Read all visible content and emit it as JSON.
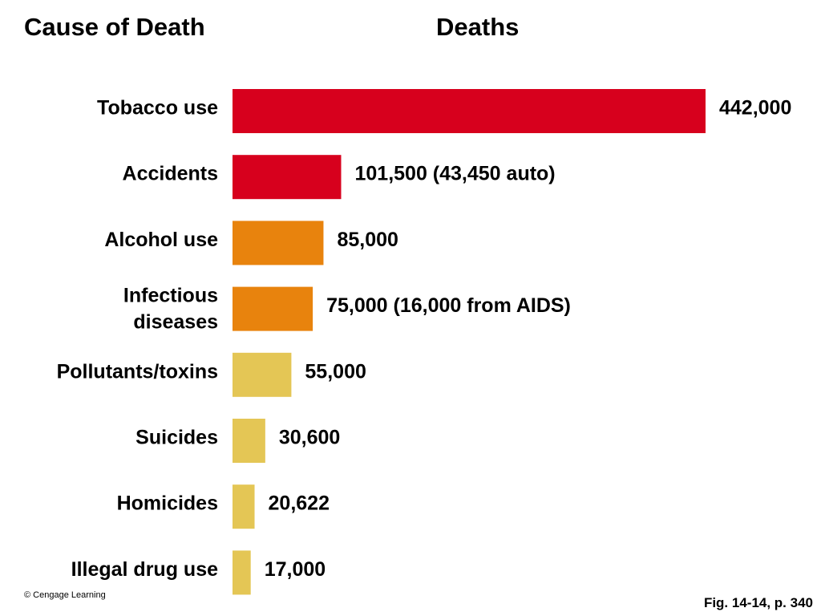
{
  "headers": {
    "cause": "Cause of Death",
    "deaths": "Deaths"
  },
  "chart_data": {
    "type": "bar",
    "orientation": "horizontal",
    "title": "",
    "xlabel": "",
    "ylabel": "",
    "xlim": [
      0,
      442000
    ],
    "grid": false,
    "legend": "none",
    "categories": [
      [
        "Tobacco use"
      ],
      [
        "Accidents"
      ],
      [
        "Alcohol use"
      ],
      [
        "Infectious",
        "diseases"
      ],
      [
        "Pollutants/toxins"
      ],
      [
        "Suicides"
      ],
      [
        "Homicides"
      ],
      [
        "Illegal drug use"
      ]
    ],
    "values": [
      442000,
      101500,
      85000,
      75000,
      55000,
      30600,
      20622,
      17000
    ],
    "value_labels": [
      "442,000",
      "101,500 (43,450 auto)",
      "85,000",
      "75,000 (16,000 from AIDS)",
      "55,000",
      "30,600",
      "20,622",
      "17,000"
    ],
    "colors": [
      "#d7001d",
      "#d7001d",
      "#e8830d",
      "#e8830d",
      "#e4c655",
      "#e4c655",
      "#e4c655",
      "#e4c655"
    ]
  },
  "footer": {
    "credit": "© Cengage Learning",
    "figure_ref": "Fig. 14-14, p. 340"
  }
}
